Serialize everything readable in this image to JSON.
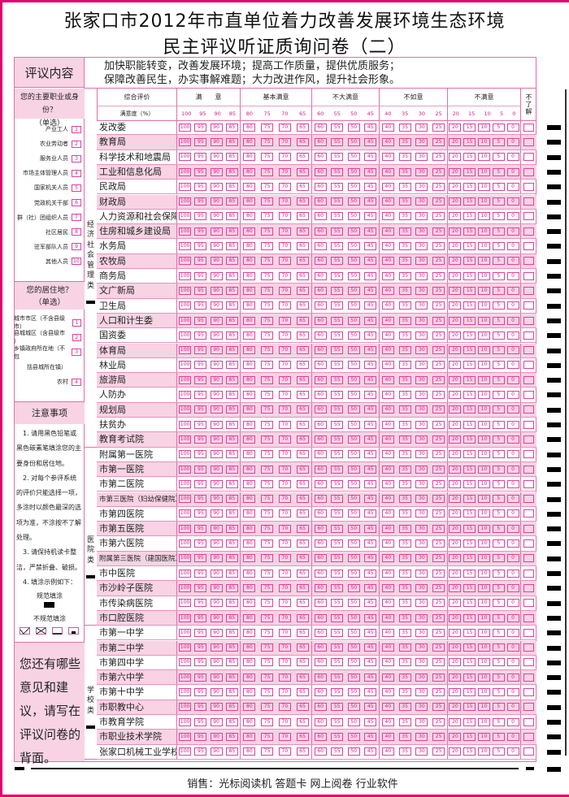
{
  "title": {
    "line1": "张家口市2012年市直单位着力改善发展环境生态环境",
    "line2": "民主评议听证质询问卷（二）"
  },
  "intro": {
    "label": "评议内容",
    "line1": "加快职能转变，改善发展环境；提高工作质量，提供优质服务；",
    "line2": "保障改善民生，办实事解难题；大力改进作风，提升社会形象。"
  },
  "occupation": {
    "title": "您的主要职业或身份？",
    "hint": "（单选）",
    "items": [
      {
        "label": "产业工人",
        "code": "1"
      },
      {
        "label": "农业劳动者",
        "code": "2"
      },
      {
        "label": "服务业人员",
        "code": "3"
      },
      {
        "label": "市场主体管理人员",
        "code": "4"
      },
      {
        "label": "国家机关人员",
        "code": "5"
      },
      {
        "label": "党政机关干部",
        "code": "6"
      },
      {
        "label": "群（社）团组织人员",
        "code": "7"
      },
      {
        "label": "社区居民",
        "code": "8"
      },
      {
        "label": "驻军部队人员",
        "code": "9"
      },
      {
        "label": "其他人员",
        "code": "10"
      }
    ]
  },
  "residence": {
    "title": "您的居住地？",
    "hint": "（单选）",
    "items": [
      {
        "label": "城市市区（不含县级市）",
        "code": "1"
      },
      {
        "label": "县城城区（含县级市 ）",
        "code": "2"
      },
      {
        "label": "乡镇政府所在地（不包",
        "code": "3"
      },
      {
        "label": "括县城所在镇）",
        "code": ""
      },
      {
        "label": "农村",
        "code": "4"
      }
    ]
  },
  "notes": {
    "title": "注意事项",
    "lines": [
      "　1. 请用黑色铅笔或",
      "黑色碳素笔填涂您的主",
      "要身份和居住地。",
      "　2. 对每个参评系统",
      "的评价只能选择一项，",
      "多涂时以颜色最深的选",
      "项为准，不涂按不了解",
      "处理。",
      "　3. 请保持机读卡整",
      "洁，严禁折叠、破损。",
      "　4. 填涂示例如下："
    ],
    "correct": "规范填涂",
    "incorrect": "不规范填涂"
  },
  "suggest": {
    "text": "您还有哪些意见和建议，请写在评议问卷的背面。"
  },
  "header": {
    "overall": "综合评价",
    "satisfaction": "满意度（%）",
    "unknown": "不了解",
    "groups": [
      {
        "label": "满　　意",
        "values": [
          "100",
          "95",
          "90",
          "85"
        ]
      },
      {
        "label": "基本满意",
        "values": [
          "80",
          "75",
          "70",
          "65"
        ]
      },
      {
        "label": "不大满意",
        "values": [
          "60",
          "55",
          "50",
          "45"
        ]
      },
      {
        "label": "不如意",
        "values": [
          "40",
          "35",
          "30",
          "25"
        ]
      },
      {
        "label": "不满意",
        "values": [
          "20",
          "15",
          "10",
          "5",
          "0"
        ]
      }
    ]
  },
  "categories": [
    {
      "label": "经济社会管理类",
      "units": [
        "发改委",
        "教育局",
        "科学技术和地震局",
        "工业和信息化局",
        "民政局",
        "财政局",
        "人力资源和社会保障局",
        "住房和城乡建设局",
        "水务局",
        "农牧局",
        "商务局",
        "文广新局",
        "卫生局",
        "人口和计生委",
        "国资委",
        "体育局",
        "林业局",
        "旅游局",
        "人防办",
        "规划局",
        "扶贫办",
        "教育考试院"
      ]
    },
    {
      "label": "医院类",
      "units": [
        "附属第一医院",
        "市第一医院",
        "市第二医院",
        "市第三医院（妇幼保健院）",
        "市第四医院",
        "市第五医院",
        "市第六医院",
        "附属第三医院（建国医院）",
        "市中医院",
        "市沙岭子医院",
        "市传染病医院",
        "市口腔医院"
      ]
    },
    {
      "label": "学校类",
      "units": [
        "市第一中学",
        "市第二中学",
        "市第四中学",
        "市第六中学",
        "市第十中学",
        "市职教中心",
        "市教育学院",
        "市职业技术学院",
        "张家口机械工业学校"
      ]
    }
  ],
  "footer": "销售：光标阅读机 答题卡 网上阅卷 行业软件",
  "colors": {
    "accent": "#e0006e",
    "pink": "#f8d3e3",
    "line": "#e070a8"
  }
}
